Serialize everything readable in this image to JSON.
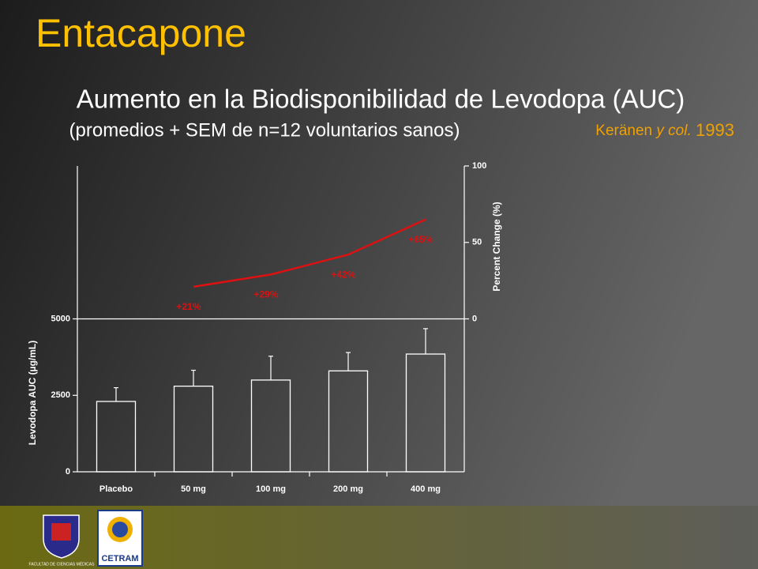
{
  "title": "Entacapone",
  "citation": {
    "author": "Keränen",
    "etal": "y col.",
    "year": "1993"
  },
  "logos": [
    "FACULTAD DE CIENCIAS MÉDICAS",
    "CETRAM"
  ],
  "chart_data": {
    "type": "bar",
    "title": "Aumento en la Biodisponibilidad de Levodopa (AUC)",
    "subtitle": "(promedios + SEM de n=12  voluntarios sanos)",
    "ylabel": "Levodopa AUC (µg/mL)",
    "y2label": "Percent Change (%)",
    "categories": [
      "Placebo",
      "50 mg",
      "100 mg",
      "200 mg",
      "400 mg"
    ],
    "ylim": [
      0,
      10000
    ],
    "yticks": [
      0,
      2500,
      5000
    ],
    "y2lim": [
      -100,
      100
    ],
    "y2ticks": [
      0,
      50,
      100
    ],
    "series": [
      {
        "type": "bar",
        "color": "#ffffff",
        "values": [
          2300,
          2800,
          3000,
          3300,
          3850
        ],
        "errors": [
          450,
          520,
          780,
          600,
          830
        ]
      },
      {
        "type": "line",
        "axis": "y2",
        "color": "#dd1111",
        "values": [
          null,
          21,
          29,
          42,
          65
        ],
        "value_labels": [
          null,
          "+21%",
          "+29%",
          "+42%",
          "+65%"
        ]
      }
    ]
  }
}
